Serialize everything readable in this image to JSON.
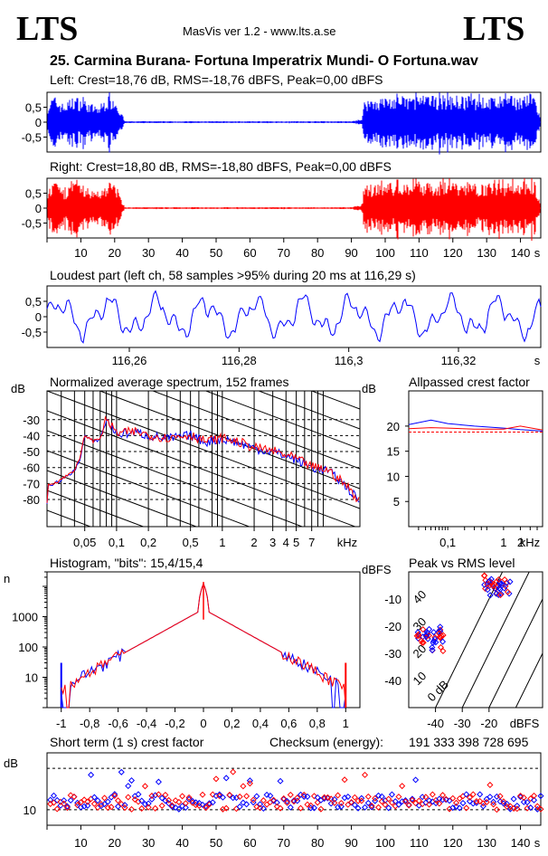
{
  "header": {
    "logo_left": "LTS",
    "logo_right": "LTS",
    "app": "MasVis ver 1.2 - www.lts.a.se",
    "file_title": "25. Carmina Burana- Fortuna Imperatrix Mundi- O Fortuna.wav"
  },
  "colors": {
    "left": "#0000ff",
    "right": "#ff0000",
    "grid": "#000000"
  },
  "chart_data": [
    {
      "id": "left_waveform",
      "type": "area",
      "title": "Left: Crest=18,76 dB, RMS=-18,76 dBFS, Peak=0,00 dBFS",
      "crest_db": 18.76,
      "rms_dbfs": -18.76,
      "peak_dbfs": 0.0,
      "ylim": [
        -1,
        1
      ],
      "yticks": [
        0.5,
        0,
        -0.5
      ],
      "ytick_labels": [
        "0,5",
        "0",
        "-0,5"
      ],
      "xlim": [
        0,
        146
      ],
      "envelope": {
        "x": [
          0,
          2,
          5,
          8,
          12,
          15,
          18,
          20,
          22,
          23,
          30,
          60,
          90,
          93,
          94,
          100,
          110,
          120,
          130,
          140,
          144,
          146
        ],
        "amp": [
          0.6,
          0.9,
          0.6,
          0.9,
          0.7,
          0.5,
          0.9,
          0.9,
          0.3,
          0.03,
          0.03,
          0.03,
          0.03,
          0.1,
          0.8,
          0.85,
          0.9,
          0.9,
          0.85,
          0.9,
          1.0,
          0.05
        ]
      }
    },
    {
      "id": "right_waveform",
      "type": "area",
      "title": "Right: Crest=18,80 dB, RMS=-18,80 dBFS, Peak=0,00 dBFS",
      "crest_db": 18.8,
      "rms_dbfs": -18.8,
      "peak_dbfs": 0.0,
      "ylim": [
        -1,
        1
      ],
      "yticks": [
        0.5,
        0,
        -0.5
      ],
      "ytick_labels": [
        "0,5",
        "0",
        "-0,5"
      ],
      "xlim": [
        0,
        146
      ],
      "xticks": [
        10,
        20,
        30,
        40,
        50,
        60,
        70,
        80,
        90,
        100,
        110,
        120,
        130,
        140
      ],
      "xunit": "s",
      "envelope": {
        "x": [
          0,
          2,
          5,
          8,
          12,
          15,
          18,
          20,
          22,
          23,
          30,
          60,
          90,
          93,
          94,
          100,
          110,
          120,
          130,
          140,
          144,
          146
        ],
        "amp": [
          0.6,
          0.9,
          0.6,
          0.9,
          0.7,
          0.5,
          0.9,
          0.9,
          0.3,
          0.03,
          0.03,
          0.03,
          0.03,
          0.1,
          0.8,
          0.85,
          0.9,
          0.9,
          0.85,
          0.9,
          1.0,
          0.05
        ]
      }
    },
    {
      "id": "loudest_part",
      "type": "line",
      "title": "Loudest part (left  ch, 58 samples >95% during 20 ms at 116,29 s)",
      "xlim": [
        116.245,
        116.335
      ],
      "ylim": [
        -1,
        1
      ],
      "yticks": [
        0.5,
        0,
        -0.5
      ],
      "ytick_labels": [
        "0,5",
        "0",
        "-0,5"
      ],
      "xticks": [
        116.26,
        116.28,
        116.3,
        116.32
      ],
      "xtick_labels": [
        "116,26",
        "116,28",
        "116,3",
        "116,32"
      ],
      "xunit": "s",
      "period_s": 0.0089
    },
    {
      "id": "avg_spectrum",
      "type": "line",
      "title": "Normalized average spectrum, 152 frames",
      "ylabel": "dB",
      "yticks": [
        -30,
        -40,
        -50,
        -60,
        -70,
        -80
      ],
      "ylim": [
        -97,
        -12
      ],
      "xticks": [
        0.05,
        0.1,
        0.2,
        0.5,
        1,
        2,
        3,
        4,
        5,
        7
      ],
      "xtick_labels": [
        "0,05",
        "0,1",
        "0,2",
        "0,5",
        "1",
        "2",
        "3",
        "4",
        "5",
        "7"
      ],
      "xunit": "kHz",
      "xlim": [
        0.022,
        20
      ],
      "series": [
        {
          "x": [
            0.022,
            0.03,
            0.04,
            0.045,
            0.05,
            0.06,
            0.07,
            0.08,
            0.1,
            0.15,
            0.2,
            0.3,
            0.5,
            0.7,
            1,
            1.5,
            2,
            3,
            5,
            7,
            10,
            15,
            20
          ],
          "y": [
            -72,
            -68,
            -62,
            -55,
            -40,
            -44,
            -42,
            -30,
            -39,
            -38,
            -40,
            -42,
            -40,
            -44,
            -42,
            -45,
            -48,
            -50,
            -55,
            -60,
            -62,
            -72,
            -82
          ]
        }
      ]
    },
    {
      "id": "allpassed_crest",
      "type": "line",
      "title": "Allpassed crest factor",
      "ylabel": "dB",
      "yticks": [
        20,
        15,
        10,
        5
      ],
      "ylim": [
        0,
        27
      ],
      "xticks": [
        0.1,
        1,
        2
      ],
      "xtick_labels": [
        "0,1",
        "1",
        "2"
      ],
      "xunit": "kHz",
      "xlim": [
        0.02,
        5
      ],
      "reference_db": 18.8,
      "series": [
        {
          "x": [
            0.02,
            0.05,
            0.1,
            0.3,
            1,
            2,
            5
          ],
          "y": [
            20.3,
            21.2,
            20.5,
            20.0,
            19.6,
            19.3,
            19.0
          ]
        },
        {
          "x": [
            0.02,
            0.05,
            0.1,
            0.3,
            1,
            2,
            5
          ],
          "y": [
            19.5,
            19.7,
            19.6,
            19.4,
            19.4,
            20.0,
            19.2
          ]
        }
      ]
    },
    {
      "id": "histogram",
      "type": "line",
      "title": "Histogram, \"bits\": 15,4/15,4",
      "ylabel": "n",
      "yticks": [
        1000,
        100,
        10
      ],
      "ytick_labels": [
        "1000",
        "100",
        "10"
      ],
      "ylim": [
        1,
        30000
      ],
      "xticks": [
        -1,
        -0.8,
        -0.6,
        -0.4,
        -0.2,
        0,
        0.2,
        0.4,
        0.6,
        0.8,
        1
      ],
      "xtick_labels": [
        "-1",
        "-0,8",
        "-0,6",
        "-0,4",
        "-0,2",
        "0",
        "0,2",
        "0,4",
        "0,6",
        "0,8",
        "1"
      ],
      "xlim": [
        -1.1,
        1.1
      ],
      "bits_left": 15.4,
      "bits_right": 15.4
    },
    {
      "id": "peak_vs_rms",
      "type": "scatter",
      "title": "Peak vs RMS level",
      "ylabel": "dBFS",
      "xlabel": "dBFS",
      "yticks": [
        -10,
        -20,
        -30,
        -40
      ],
      "xticks": [
        -40,
        -30,
        -20
      ],
      "xlim": [
        -50,
        0
      ],
      "ylim": [
        -50,
        0
      ],
      "crest_lines": [
        {
          "label": "40",
          "crest": 40
        },
        {
          "label": "30",
          "crest": 30
        },
        {
          "label": "20",
          "crest": 20
        },
        {
          "label": "10",
          "crest": 10
        },
        {
          "label": "0 dB",
          "crest": 0
        }
      ],
      "clusters": [
        {
          "x": -42,
          "y": -25,
          "n": 40
        },
        {
          "x": -17,
          "y": -5,
          "n": 40
        }
      ]
    },
    {
      "id": "short_term_crest",
      "type": "scatter",
      "title": "Short term (1 s) crest factor",
      "ylabel": "dB",
      "checksum_label": "Checksum (energy):",
      "checksum": "191 333 398 728 695",
      "yticks": [
        10
      ],
      "ylim": [
        7,
        21
      ],
      "xticks": [
        10,
        20,
        30,
        40,
        50,
        60,
        70,
        80,
        90,
        100,
        110,
        120,
        130,
        140
      ],
      "xunit": "s",
      "xlim": [
        0,
        146
      ],
      "dashed_levels": [
        18,
        10
      ],
      "mean": 11.5
    }
  ]
}
